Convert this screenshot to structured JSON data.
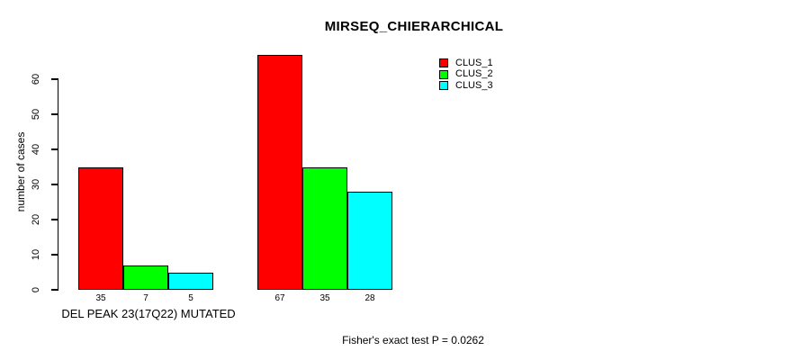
{
  "figure": {
    "title": "MIRSEQ_CHIERARCHICAL",
    "ylabel": "number of cases",
    "group1_label": "DEL PEAK 23(17Q22) MUTATED",
    "footer": "Fisher's exact test P = 0.0262"
  },
  "legend": {
    "items": [
      {
        "label": "CLUS_1",
        "color": "#FF0000"
      },
      {
        "label": "CLUS_2",
        "color": "#00FF00"
      },
      {
        "label": "CLUS_3",
        "color": "#00FFFF"
      }
    ]
  },
  "chart_data": {
    "type": "bar",
    "title": "MIRSEQ_CHIERARCHICAL",
    "xlabel": "",
    "ylabel": "number of cases",
    "ylim": [
      0,
      60
    ],
    "yticks": [
      0,
      10,
      20,
      30,
      40,
      50,
      60
    ],
    "grid": false,
    "legend_position": "top-right",
    "categories": [
      "DEL PEAK 23(17Q22) MUTATED",
      ""
    ],
    "series": [
      {
        "name": "CLUS_1",
        "color": "#FF0000",
        "values": [
          35,
          67
        ]
      },
      {
        "name": "CLUS_2",
        "color": "#00FF00",
        "values": [
          7,
          35
        ]
      },
      {
        "name": "CLUS_3",
        "color": "#00FFFF",
        "values": [
          5,
          28
        ]
      }
    ],
    "bar_value_labels": [
      [
        35,
        7,
        5
      ],
      [
        67,
        35,
        28
      ]
    ],
    "annotation": "Fisher's exact test P = 0.0262"
  }
}
